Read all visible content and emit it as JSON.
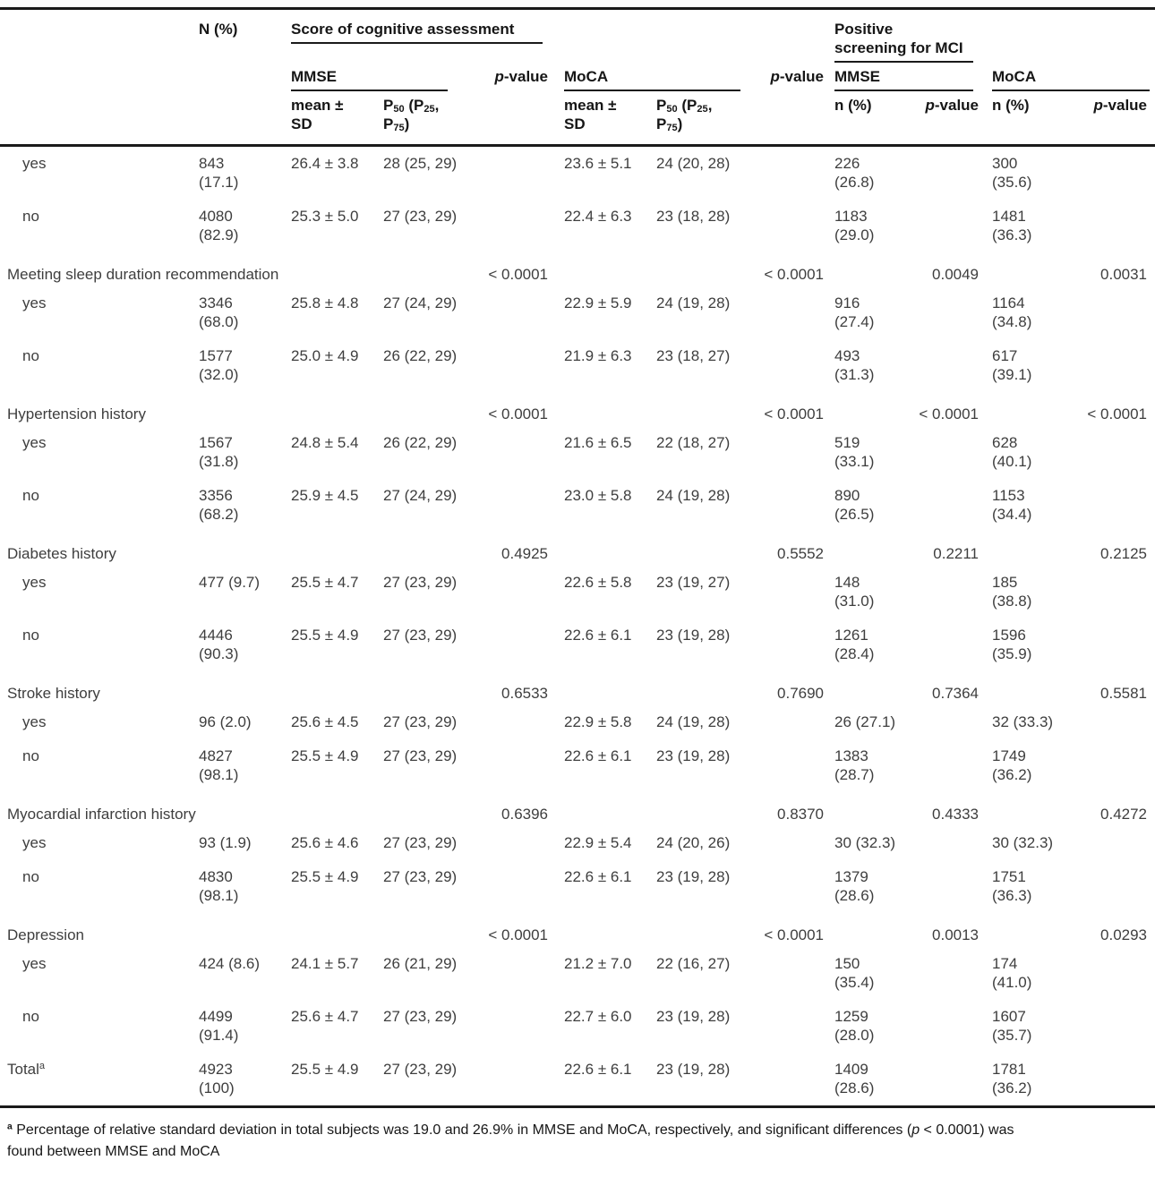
{
  "colors": {
    "text": "#3e3e3e",
    "rule": "#1a1a1a",
    "background": "#ffffff"
  },
  "table": {
    "header": {
      "n_label": "N (%)",
      "score_group": "Score of cognitive assessment",
      "mci_group": "Positive\nscreening for MCI",
      "mmse": "MMSE",
      "moca": "MoCA",
      "p_value": "*p*-value",
      "mean_sd": "mean ±\nSD",
      "p50": "P_50_ (P_25_,\nP_75_)",
      "n_pct": "n (%)"
    },
    "rows": [
      {
        "label": "yes",
        "n": "843\n(17.1)",
        "mmse_mean": "26.4 ± 3.8",
        "mmse_p50": "28 (25, 29)",
        "moca_mean": "23.6 ± 5.1",
        "moca_p50": "24 (20, 28)",
        "mci_mmse_n": "226\n(26.8)",
        "mci_moca_n": "300\n(35.6)"
      },
      {
        "label": "no",
        "n": "4080\n(82.9)",
        "mmse_mean": "25.3 ± 5.0",
        "mmse_p50": "27 (23, 29)",
        "moca_mean": "22.4 ± 6.3",
        "moca_p50": "23 (18, 28)",
        "mci_mmse_n": "1183\n(29.0)",
        "mci_moca_n": "1481\n(36.3)"
      },
      {
        "label": "Meeting sleep duration recommendation",
        "p_mmse": "< 0.0001",
        "p_moca": "< 0.0001",
        "p_mci_mmse": "0.0049",
        "p_mci_moca": "0.0031"
      },
      {
        "label": "yes",
        "n": "3346\n(68.0)",
        "mmse_mean": "25.8 ± 4.8",
        "mmse_p50": "27 (24, 29)",
        "moca_mean": "22.9 ± 5.9",
        "moca_p50": "24 (19, 28)",
        "mci_mmse_n": "916\n(27.4)",
        "mci_moca_n": "1164\n(34.8)"
      },
      {
        "label": "no",
        "n": "1577\n(32.0)",
        "mmse_mean": "25.0 ± 4.9",
        "mmse_p50": "26 (22, 29)",
        "moca_mean": "21.9 ± 6.3",
        "moca_p50": "23 (18, 27)",
        "mci_mmse_n": "493\n(31.3)",
        "mci_moca_n": "617\n(39.1)"
      },
      {
        "label": "Hypertension history",
        "p_mmse": "< 0.0001",
        "p_moca": "< 0.0001",
        "p_mci_mmse": "< 0.0001",
        "p_mci_moca": "< 0.0001"
      },
      {
        "label": "yes",
        "n": "1567\n(31.8)",
        "mmse_mean": "24.8 ± 5.4",
        "mmse_p50": "26 (22, 29)",
        "moca_mean": "21.6 ± 6.5",
        "moca_p50": "22 (18, 27)",
        "mci_mmse_n": "519\n(33.1)",
        "mci_moca_n": "628\n(40.1)"
      },
      {
        "label": "no",
        "n": "3356\n(68.2)",
        "mmse_mean": "25.9 ± 4.5",
        "mmse_p50": "27 (24, 29)",
        "moca_mean": "23.0 ± 5.8",
        "moca_p50": "24 (19, 28)",
        "mci_mmse_n": "890\n(26.5)",
        "mci_moca_n": "1153\n(34.4)"
      },
      {
        "label": "Diabetes history",
        "p_mmse": "0.4925",
        "p_moca": "0.5552",
        "p_mci_mmse": "0.2211",
        "p_mci_moca": "0.2125"
      },
      {
        "label": "yes",
        "n": "477 (9.7)",
        "mmse_mean": "25.5 ± 4.7",
        "mmse_p50": "27 (23, 29)",
        "moca_mean": "22.6 ± 5.8",
        "moca_p50": "23 (19, 27)",
        "mci_mmse_n": "148\n(31.0)",
        "mci_moca_n": "185\n(38.8)"
      },
      {
        "label": "no",
        "n": "4446\n(90.3)",
        "mmse_mean": "25.5 ± 4.9",
        "mmse_p50": "27 (23, 29)",
        "moca_mean": "22.6 ± 6.1",
        "moca_p50": "23 (19, 28)",
        "mci_mmse_n": "1261\n(28.4)",
        "mci_moca_n": "1596\n(35.9)"
      },
      {
        "label": "Stroke history",
        "p_mmse": "0.6533",
        "p_moca": "0.7690",
        "p_mci_mmse": "0.7364",
        "p_mci_moca": "0.5581"
      },
      {
        "label": "yes",
        "n": "96 (2.0)",
        "mmse_mean": "25.6 ± 4.5",
        "mmse_p50": "27 (23, 29)",
        "moca_mean": "22.9 ± 5.8",
        "moca_p50": "24 (19, 28)",
        "mci_mmse_n": "26 (27.1)",
        "mci_moca_n": "32 (33.3)"
      },
      {
        "label": "no",
        "n": "4827\n(98.1)",
        "mmse_mean": "25.5 ± 4.9",
        "mmse_p50": "27 (23, 29)",
        "moca_mean": "22.6 ± 6.1",
        "moca_p50": "23 (19, 28)",
        "mci_mmse_n": "1383\n(28.7)",
        "mci_moca_n": "1749\n(36.2)"
      },
      {
        "label": "Myocardial infarction history",
        "p_mmse": "0.6396",
        "p_moca": "0.8370",
        "p_mci_mmse": "0.4333",
        "p_mci_moca": "0.4272"
      },
      {
        "label": "yes",
        "n": "93 (1.9)",
        "mmse_mean": "25.6 ± 4.6",
        "mmse_p50": "27 (23, 29)",
        "moca_mean": "22.9 ± 5.4",
        "moca_p50": "24 (20, 26)",
        "mci_mmse_n": "30 (32.3)",
        "mci_moca_n": "30 (32.3)"
      },
      {
        "label": "no",
        "n": "4830\n(98.1)",
        "mmse_mean": "25.5 ± 4.9",
        "mmse_p50": "27 (23, 29)",
        "moca_mean": "22.6 ± 6.1",
        "moca_p50": "23 (19, 28)",
        "mci_mmse_n": "1379\n(28.6)",
        "mci_moca_n": "1751\n(36.3)"
      },
      {
        "label": "Depression",
        "p_mmse": "< 0.0001",
        "p_moca": "< 0.0001",
        "p_mci_mmse": "0.0013",
        "p_mci_moca": "0.0293"
      },
      {
        "label": "yes",
        "n": "424 (8.6)",
        "mmse_mean": "24.1 ± 5.7",
        "mmse_p50": "26 (21, 29)",
        "moca_mean": "21.2 ± 7.0",
        "moca_p50": "22 (16, 27)",
        "mci_mmse_n": "150\n(35.4)",
        "mci_moca_n": "174\n(41.0)"
      },
      {
        "label": "no",
        "n": "4499\n(91.4)",
        "mmse_mean": "25.6 ± 4.7",
        "mmse_p50": "27 (23, 29)",
        "moca_mean": "22.7 ± 6.0",
        "moca_p50": "23 (19, 28)",
        "mci_mmse_n": "1259\n(28.0)",
        "mci_moca_n": "1607\n(35.7)"
      },
      {
        "label": "Total^a^",
        "n": "4923\n(100)",
        "mmse_mean": "25.5 ± 4.9",
        "mmse_p50": "27 (23, 29)",
        "moca_mean": "22.6 ± 6.1",
        "moca_p50": "23 (19, 28)",
        "mci_mmse_n": "1409\n(28.6)",
        "mci_moca_n": "1781\n(36.2)"
      }
    ],
    "footnote": "^a^ Percentage of relative standard deviation in total subjects was 19.0 and 26.9% in MMSE and MoCA, respectively, and significant differences (*p* < 0.0001) was\nfound between MMSE and MoCA"
  }
}
